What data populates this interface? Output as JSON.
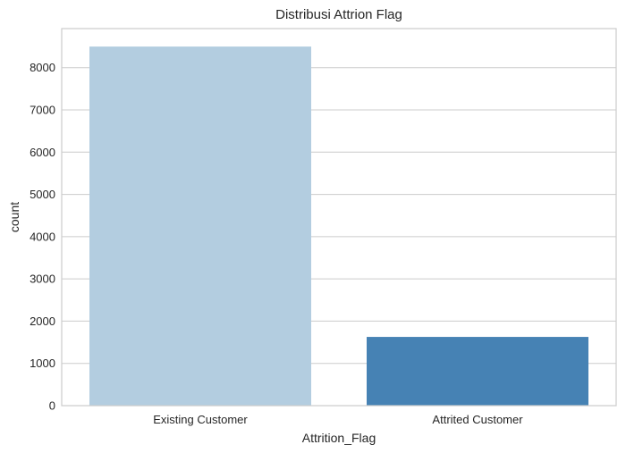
{
  "chart_data": {
    "type": "bar",
    "title": "Distribusi Attrion Flag",
    "xlabel": "Attrition_Flag",
    "ylabel": "count",
    "categories": [
      "Existing Customer",
      "Attrited Customer"
    ],
    "values": [
      8500,
      1627
    ],
    "ylim": [
      0,
      8925
    ],
    "yticks": [
      0,
      1000,
      2000,
      3000,
      4000,
      5000,
      6000,
      7000,
      8000
    ],
    "grid": "horizontal",
    "colors": [
      "#b3cde0",
      "#4682b4"
    ],
    "legend": "none"
  }
}
